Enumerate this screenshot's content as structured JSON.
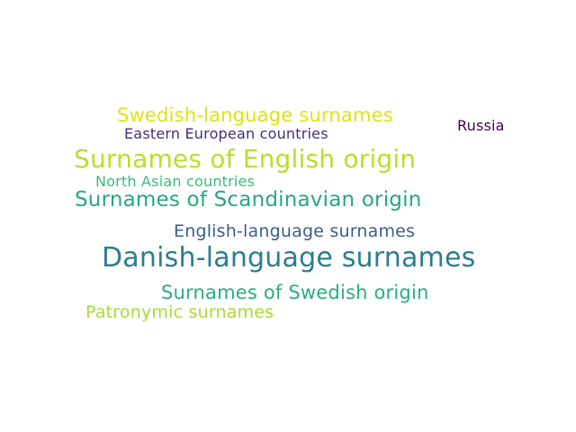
{
  "words": [
    {
      "text": "Swedish-language surnames",
      "color": "#dde318"
    },
    {
      "text": "Russia",
      "color": "#440154"
    },
    {
      "text": "Eastern European countries",
      "color": "#472d7b"
    },
    {
      "text": "Surnames of English origin",
      "color": "#bade28"
    },
    {
      "text": "North Asian countries",
      "color": "#3bbb75"
    },
    {
      "text": "Surnames of Scandinavian origin",
      "color": "#26a784"
    },
    {
      "text": "English-language surnames",
      "color": "#3b5f8a"
    },
    {
      "text": "Danish-language surnames",
      "color": "#2c7d8e"
    },
    {
      "text": "Surnames of Swedish origin",
      "color": "#28ae80"
    },
    {
      "text": "Patronymic surnames",
      "color": "#a8db34"
    }
  ]
}
